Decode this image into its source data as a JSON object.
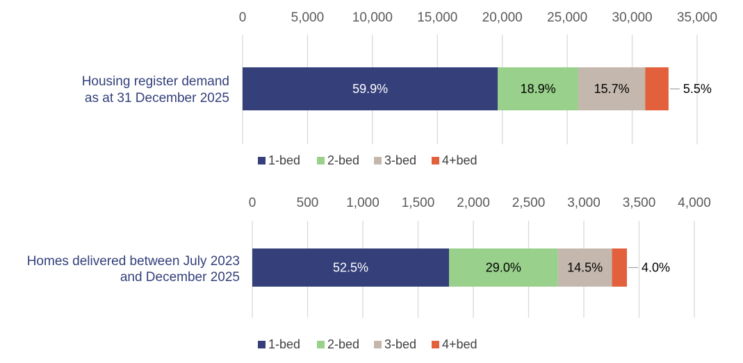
{
  "legend_labels": [
    "1-bed",
    "2-bed",
    "3-bed",
    "4+bed"
  ],
  "chart_data": [
    {
      "type": "bar",
      "orientation": "horizontal",
      "stacked": true,
      "categories": [
        "Housing register demand as at 31 December 2025"
      ],
      "category_lines": [
        "Housing register demand",
        "as at 31 December 2025"
      ],
      "xlim": [
        0,
        35000
      ],
      "ticks": [
        0,
        5000,
        10000,
        15000,
        20000,
        25000,
        30000,
        35000
      ],
      "tick_labels": [
        "0",
        "5,000",
        "10,000",
        "15,000",
        "20,000",
        "25,000",
        "30,000",
        "35,000"
      ],
      "axis_position": "top",
      "grid": true,
      "legend_position": "bottom",
      "series": [
        {
          "name": "1-bed",
          "color": "#353f7a",
          "values": [
            19650
          ],
          "data_label": "59.9%",
          "label_color": "#ffffff"
        },
        {
          "name": "2-bed",
          "color": "#99d08b",
          "values": [
            6200
          ],
          "data_label": "18.9%",
          "label_color": "#000000"
        },
        {
          "name": "3-bed",
          "color": "#c4b7ad",
          "values": [
            5150
          ],
          "data_label": "15.7%",
          "label_color": "#000000"
        },
        {
          "name": "4+bed",
          "color": "#e2603b",
          "values": [
            1800
          ],
          "data_label": "5.5%",
          "label_color": "#000000"
        }
      ]
    },
    {
      "type": "bar",
      "orientation": "horizontal",
      "stacked": true,
      "categories": [
        "Homes delivered between July 2023 and December 2025"
      ],
      "category_lines": [
        "Homes delivered between July 2023",
        "and December 2025"
      ],
      "xlim": [
        0,
        4000
      ],
      "ticks": [
        0,
        500,
        1000,
        1500,
        2000,
        2500,
        3000,
        3500,
        4000
      ],
      "tick_labels": [
        "0",
        "500",
        "1,000",
        "1,500",
        "2,000",
        "2,500",
        "3,000",
        "3,500",
        "4,000"
      ],
      "axis_position": "top",
      "grid": true,
      "legend_position": "bottom",
      "series": [
        {
          "name": "1-bed",
          "color": "#353f7a",
          "values": [
            1780
          ],
          "data_label": "52.5%",
          "label_color": "#ffffff"
        },
        {
          "name": "2-bed",
          "color": "#99d08b",
          "values": [
            985
          ],
          "data_label": "29.0%",
          "label_color": "#000000"
        },
        {
          "name": "3-bed",
          "color": "#c4b7ad",
          "values": [
            490
          ],
          "data_label": "14.5%",
          "label_color": "#000000"
        },
        {
          "name": "4+bed",
          "color": "#e2603b",
          "values": [
            135
          ],
          "data_label": "4.0%",
          "label_color": "#000000"
        }
      ]
    }
  ]
}
